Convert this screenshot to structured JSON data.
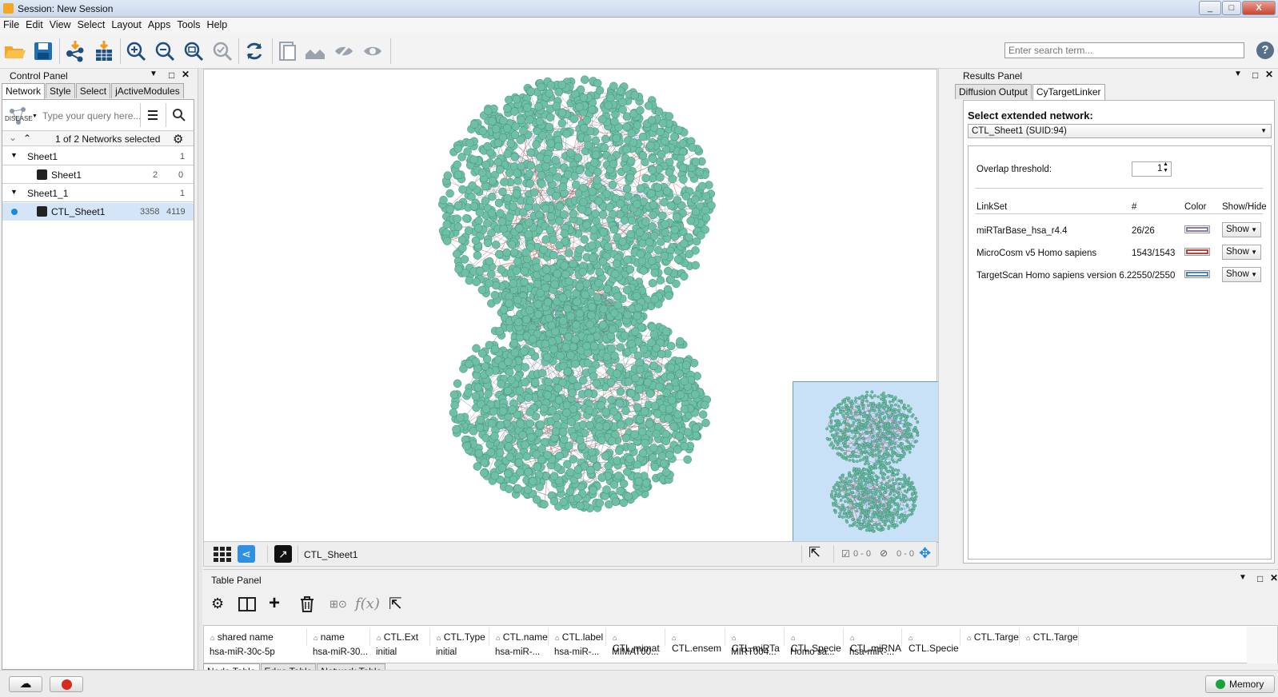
{
  "window": {
    "title": "Session: New Session",
    "minimize": "_",
    "restore": "□",
    "close": "X"
  },
  "menu": [
    "File",
    "Edit",
    "View",
    "Select",
    "Layout",
    "Apps",
    "Tools",
    "Help"
  ],
  "search": {
    "placeholder": "Enter search term..."
  },
  "help": {
    "label": "?"
  },
  "control_panel": {
    "title": "Control Panel",
    "tabs": [
      "Network",
      "Style",
      "Select",
      "jActiveModules"
    ],
    "query_placeholder": "Type your query here...",
    "query_logo": "DISEASE",
    "selected_text": "1 of 2 Networks selected",
    "tree": [
      {
        "label": "Sheet1",
        "count": "1"
      },
      {
        "label": "Sheet1",
        "nodes": "2",
        "edges": "0"
      },
      {
        "label": "Sheet1_1",
        "count": "1"
      },
      {
        "label": "CTL_Sheet1",
        "nodes": "3358",
        "edges": "4119"
      }
    ]
  },
  "network_view": {
    "name": "CTL_Sheet1",
    "selected_nodes": "0 - 0",
    "hidden": "0 - 0"
  },
  "results_panel": {
    "title": "Results Panel",
    "tabs": [
      "Diffusion Output",
      "CyTargetLinker"
    ],
    "select_label": "Select extended network:",
    "selected_network": "CTL_Sheet1 (SUID:94)",
    "overlap_label": "Overlap threshold:",
    "overlap_value": "1",
    "columns": [
      "LinkSet",
      "#",
      "Color",
      "Show/Hide"
    ],
    "linksets": [
      {
        "name": "miRTarBase_hsa_r4.4",
        "count": "26/26",
        "color": "#8b7aa8",
        "action": "Show"
      },
      {
        "name": "MicroCosm v5 Homo sapiens",
        "count": "1543/1543",
        "color": "#c0413a",
        "action": "Show"
      },
      {
        "name": "TargetScan Homo sapiens version 6.2",
        "count": "2550/2550",
        "color": "#4f86b8",
        "action": "Show"
      }
    ]
  },
  "table_panel": {
    "title": "Table Panel",
    "columns": [
      "shared name",
      "name",
      "CTL.Ext",
      "CTL.Type",
      "CTL.name",
      "CTL.label",
      "CTL.mimat",
      "CTL.ensem",
      "CTL.miRTa",
      "CTL.Specie",
      "CTL.miRNA",
      "CTL.Specie",
      "CTL.Targe",
      "CTL.Targe"
    ],
    "row": [
      "hsa-miR-30c-5p",
      "hsa-miR-30...",
      "initial",
      "initial",
      "hsa-miR-...",
      "hsa-miR-...",
      "MIMAT00...",
      "",
      "MIRT004...",
      "Homo sa...",
      "hsa-miR-...",
      "",
      "",
      ""
    ],
    "tabs": [
      "Node Table",
      "Edge Table",
      "Network Table"
    ]
  },
  "status": {
    "memory": "Memory"
  },
  "colors": {
    "node": "#6fbfa6",
    "node_dark": "#3f8f79",
    "selection": "#d3e5f7",
    "accent": "#1e88e5"
  }
}
